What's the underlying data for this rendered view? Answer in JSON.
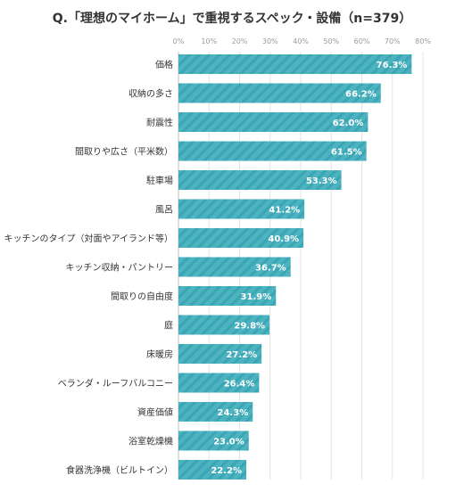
{
  "colors": {
    "bar": "#4db3c0",
    "bar_stripe": "#3aa5b3",
    "grid": "#e3e3e3",
    "axis": "#bdbdbd",
    "label_text": "#333333",
    "tick_text": "#9a9a9a",
    "value_text": "#ffffff"
  },
  "chart_data": {
    "type": "bar",
    "orientation": "horizontal",
    "title": "Q.「理想のマイホーム」で重視するスペック・設備（n=379）",
    "xlim": [
      0,
      80
    ],
    "x_ticks": [
      "0%",
      "10%",
      "20%",
      "30%",
      "40%",
      "50%",
      "60%",
      "70%",
      "80%"
    ],
    "grid": true,
    "categories": [
      "価格",
      "収納の多さ",
      "耐震性",
      "間取りや広さ（平米数）",
      "駐車場",
      "風呂",
      "キッチンのタイプ（対面やアイランド等）",
      "キッチン収納・パントリー",
      "間取りの自由度",
      "庭",
      "床暖房",
      "ベランダ・ルーフバルコニー",
      "資産価値",
      "浴室乾燥機",
      "食器洗浄機（ビルトイン）"
    ],
    "values": [
      76.3,
      66.2,
      62.0,
      61.5,
      53.3,
      41.2,
      40.9,
      36.7,
      31.9,
      29.8,
      27.2,
      26.4,
      24.3,
      23.0,
      22.2
    ],
    "value_labels": [
      "76.3%",
      "66.2%",
      "62.0%",
      "61.5%",
      "53.3%",
      "41.2%",
      "40.9%",
      "36.7%",
      "31.9%",
      "29.8%",
      "27.2%",
      "26.4%",
      "24.3%",
      "23.0%",
      "22.2%"
    ]
  }
}
